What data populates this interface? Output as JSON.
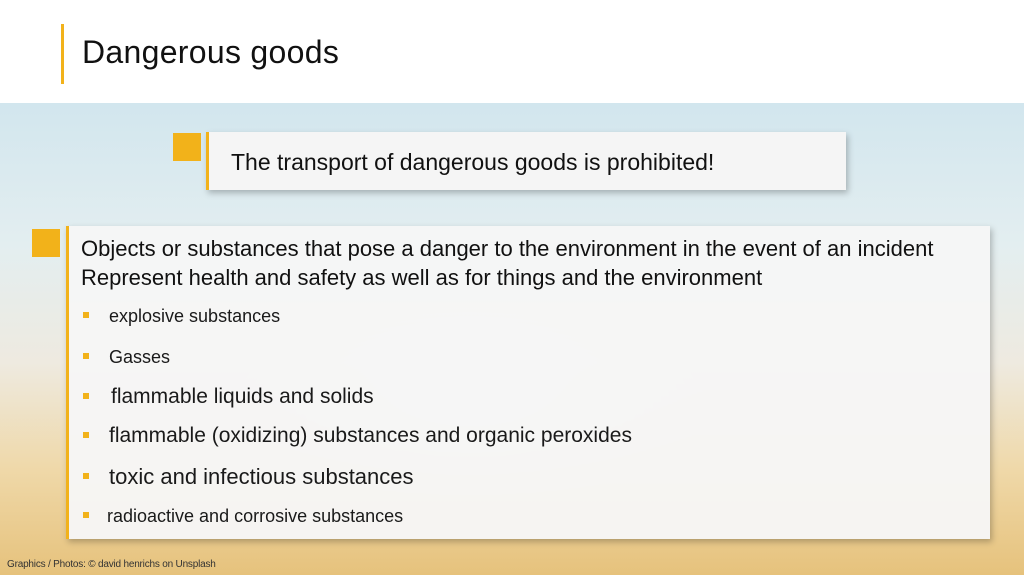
{
  "slide": {
    "title": "Dangerous goods",
    "notice": "The transport of dangerous goods is prohibited!",
    "intro": "Objects or substances that pose a danger to the environment in the event of an incident Represent health and safety as well as for things and the environment",
    "items": [
      "explosive substances",
      "Gasses",
      "flammable liquids and solids",
      "flammable (oxidizing) substances and organic peroxides",
      "toxic and infectious substances",
      "radioactive and corrosive substances"
    ],
    "credit": "Graphics / Photos: © david henrichs on Unsplash"
  },
  "colors": {
    "accent": "#f2b21a",
    "text": "#111111",
    "box": "#f5f5f5"
  }
}
